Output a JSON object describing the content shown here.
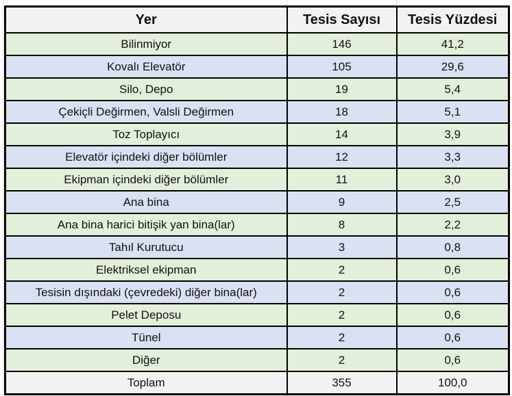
{
  "chart_data": {
    "type": "table",
    "title": "",
    "columns": [
      "Yer",
      "Tesis Sayısı",
      "Tesis Yüzdesi"
    ],
    "rows": [
      [
        "Bilinmiyor",
        146,
        "41,2"
      ],
      [
        "Kovalı Elevatör",
        105,
        "29,6"
      ],
      [
        "Silo, Depo",
        19,
        "5,4"
      ],
      [
        "Çekiçli Değirmen, Valsli Değirmen",
        18,
        "5,1"
      ],
      [
        "Toz Toplayıcı",
        14,
        "3,9"
      ],
      [
        "Elevatör içindeki diğer bölümler",
        12,
        "3,3"
      ],
      [
        "Ekipman içindeki diğer bölümler",
        11,
        "3,0"
      ],
      [
        "Ana bina",
        9,
        "2,5"
      ],
      [
        "Ana bina harici bitişik yan bina(lar)",
        8,
        "2,2"
      ],
      [
        "Tahıl Kurutucu",
        3,
        "0,8"
      ],
      [
        "Elektriksel ekipman",
        2,
        "0,6"
      ],
      [
        "Tesisin dışındaki (çevredeki) diğer bina(lar)",
        2,
        "0,6"
      ],
      [
        "Pelet Deposu",
        2,
        "0,6"
      ],
      [
        "Tünel",
        2,
        "0,6"
      ],
      [
        "Diğer",
        2,
        "0,6"
      ]
    ],
    "total_row": [
      "Toplam",
      355,
      "100,0"
    ]
  },
  "table": {
    "header": {
      "yer": "Yer",
      "sayi": "Tesis Sayısı",
      "yuzde": "Tesis Yüzdesi"
    },
    "rows": [
      {
        "yer": "Bilinmiyor",
        "sayi": "146",
        "yuzde": "41,2"
      },
      {
        "yer": "Kovalı Elevatör",
        "sayi": "105",
        "yuzde": "29,6"
      },
      {
        "yer": "Silo, Depo",
        "sayi": "19",
        "yuzde": "5,4"
      },
      {
        "yer": "Çekiçli Değirmen, Valsli Değirmen",
        "sayi": "18",
        "yuzde": "5,1"
      },
      {
        "yer": "Toz Toplayıcı",
        "sayi": "14",
        "yuzde": "3,9"
      },
      {
        "yer": "Elevatör içindeki diğer bölümler",
        "sayi": "12",
        "yuzde": "3,3"
      },
      {
        "yer": "Ekipman içindeki diğer bölümler",
        "sayi": "11",
        "yuzde": "3,0"
      },
      {
        "yer": "Ana bina",
        "sayi": "9",
        "yuzde": "2,5"
      },
      {
        "yer": "Ana bina harici bitişik yan bina(lar)",
        "sayi": "8",
        "yuzde": "2,2"
      },
      {
        "yer": "Tahıl Kurutucu",
        "sayi": "3",
        "yuzde": "0,8"
      },
      {
        "yer": "Elektriksel ekipman",
        "sayi": "2",
        "yuzde": "0,6"
      },
      {
        "yer": "Tesisin dışındaki (çevredeki) diğer bina(lar)",
        "sayi": "2",
        "yuzde": "0,6"
      },
      {
        "yer": "Pelet Deposu",
        "sayi": "2",
        "yuzde": "0,6"
      },
      {
        "yer": "Tünel",
        "sayi": "2",
        "yuzde": "0,6"
      },
      {
        "yer": "Diğer",
        "sayi": "2",
        "yuzde": "0,6"
      }
    ],
    "total": {
      "yer": "Toplam",
      "sayi": "355",
      "yuzde": "100,0"
    }
  },
  "colors": {
    "row_green": "#e2efda",
    "row_blue": "#d9e1f2",
    "header_gray": "#f2f2f2",
    "border": "#000000",
    "gridline": "#d9d9d9",
    "text": "#111111"
  }
}
